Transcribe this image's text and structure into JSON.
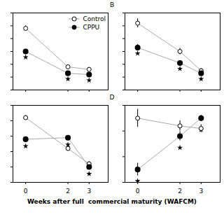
{
  "chart_data": [
    {
      "type": "line",
      "x": [
        0,
        2,
        3
      ],
      "xlim": [
        -0.6,
        3.9
      ],
      "xticks": [
        0,
        2,
        3
      ],
      "ylim": [
        2,
        8
      ],
      "yticks": [
        2,
        3,
        4,
        5,
        6,
        7,
        8
      ],
      "tick_labels": false,
      "grid": false,
      "color": "#aaaaaa",
      "legend": "top-right",
      "series": [
        {
          "name": "Control",
          "marker": "circle_open",
          "line_style": "solid",
          "values": [
            6.8,
            3.8,
            3.6
          ],
          "errors": [
            0.2,
            0.15,
            0.15
          ]
        },
        {
          "name": "CPPU",
          "marker": "circle_filled",
          "line_style": "solid",
          "values": [
            5.0,
            3.3,
            3.2
          ],
          "errors": [
            0.15,
            0.12,
            0.12
          ]
        },
        {
          "marker": "star",
          "line_style": "none",
          "values": [
            4.55,
            2.85,
            2.75
          ]
        }
      ]
    },
    {
      "type": "line",
      "x": [
        0,
        2,
        3
      ],
      "xlim": [
        -0.6,
        3.9
      ],
      "xticks": [
        0,
        2,
        3
      ],
      "ylim": [
        2,
        8
      ],
      "yticks": [
        2,
        3,
        4,
        5,
        6,
        7,
        8
      ],
      "tick_labels": false,
      "grid": false,
      "color": "#aaaaaa",
      "annotations": [
        "B"
      ],
      "series": [
        {
          "name": "Control",
          "marker": "circle_open",
          "line_style": "solid",
          "values": [
            7.2,
            5.0,
            3.5
          ],
          "errors": [
            0.35,
            0.25,
            0.18
          ]
        },
        {
          "name": "CPPU",
          "marker": "circle_filled",
          "line_style": "solid",
          "values": [
            5.3,
            4.1,
            3.3
          ],
          "errors": [
            0.25,
            0.18,
            0.12
          ]
        },
        {
          "marker": "star",
          "line_style": "none",
          "values": [
            4.85,
            3.65,
            2.85
          ]
        }
      ]
    },
    {
      "type": "line",
      "x": [
        0,
        2,
        3
      ],
      "xlim": [
        -0.6,
        3.9
      ],
      "xticks": [
        0,
        2,
        3
      ],
      "ylim": [
        2,
        7
      ],
      "yticks": [
        2,
        3,
        4,
        5,
        6,
        7
      ],
      "tick_labels": "x",
      "grid": false,
      "color": "#aaaaaa",
      "series": [
        {
          "name": "Control",
          "marker": "circle_open",
          "line_style": "solid",
          "values": [
            6.2,
            4.2,
            3.2
          ],
          "errors": [
            0.15,
            0.15,
            0.15
          ]
        },
        {
          "name": "CPPU",
          "marker": "circle_filled",
          "line_style": "solid",
          "values": [
            4.8,
            4.9,
            3.0
          ],
          "errors": [
            0.12,
            0.12,
            0.12
          ]
        },
        {
          "marker": "star",
          "line_style": "none",
          "values": [
            4.35,
            4.45,
            2.55
          ]
        }
      ]
    },
    {
      "type": "line",
      "x": [
        0,
        2,
        3
      ],
      "xlim": [
        -0.6,
        3.9
      ],
      "xticks": [
        0,
        2,
        3
      ],
      "ylim": [
        4,
        7
      ],
      "yticks": [
        4,
        5,
        6,
        7
      ],
      "tick_labels": "x",
      "grid": false,
      "color": "#aaaaaa",
      "annotations": [
        "D"
      ],
      "xlabel": "Weeks after full  commercial maturity (WAFCM)",
      "series": [
        {
          "name": "Control",
          "marker": "circle_open",
          "line_style": "solid",
          "values": [
            6.5,
            6.2,
            6.1
          ],
          "errors": [
            0.35,
            0.2,
            0.15
          ]
        },
        {
          "name": "CPPU",
          "marker": "circle_filled",
          "line_style": "solid",
          "values": [
            4.5,
            5.8,
            6.5
          ],
          "errors": [
            0.25,
            0.18,
            0.12
          ]
        },
        {
          "marker": "star",
          "line_style": "none",
          "values": [
            4.05,
            5.35,
            6.05
          ]
        }
      ]
    }
  ]
}
